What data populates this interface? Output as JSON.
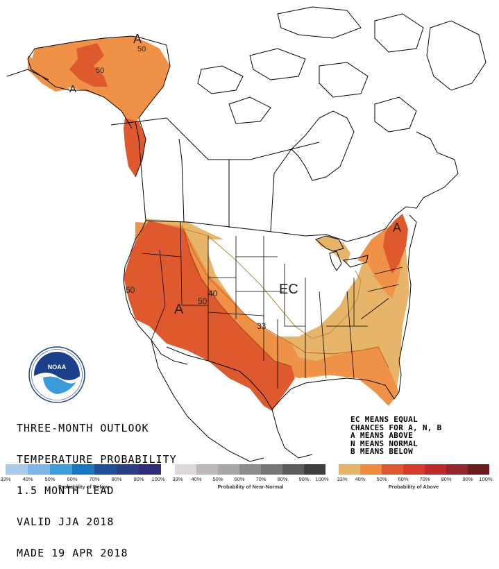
{
  "title_lines": [
    "THREE-MONTH OUTLOOK",
    "TEMPERATURE PROBABILITY",
    "1.5 MONTH LEAD",
    "VALID JJA 2018",
    "MADE 19 APR 2018"
  ],
  "legend_lines": [
    "EC MEANS EQUAL",
    "CHANCES FOR A, N, B",
    "A MEANS ABOVE",
    "N MEANS NORMAL",
    "B MEANS BELOW"
  ],
  "map_labels": {
    "ec": "EC",
    "above_west": "A",
    "above_alaska": "A",
    "above_alaska_south": "A",
    "above_northeast": "A",
    "c50_west": "50",
    "c50_interior": "50",
    "c40": "40",
    "c33": "33",
    "c50_alaska_1": "50",
    "c50_alaska_2": "50"
  },
  "colorbars": [
    {
      "title": "Probability of Below",
      "ticks": [
        "33%",
        "40%",
        "50%",
        "60%",
        "70%",
        "80%",
        "90%",
        "100%"
      ],
      "colors": [
        "#a8cbea",
        "#7ab6e6",
        "#3e9fdc",
        "#1577c0",
        "#1f4f96",
        "#2d3f86",
        "#2e2b78"
      ]
    },
    {
      "title": "Probability of Near-Normal",
      "ticks": [
        "33%",
        "40%",
        "50%",
        "60%",
        "70%",
        "80%",
        "90%",
        "100%"
      ],
      "colors": [
        "#dcd8d8",
        "#bfbaba",
        "#a9a6a6",
        "#8f8c8c",
        "#797777",
        "#5d5c5c",
        "#3e3e3e"
      ]
    },
    {
      "title": "Probability of Above",
      "ticks": [
        "33%",
        "40%",
        "50%",
        "60%",
        "70%",
        "80%",
        "90%",
        "100%"
      ],
      "colors": [
        "#e6b56a",
        "#f08a3d",
        "#de5a2e",
        "#d63a2a",
        "#bd2a2e",
        "#93262c",
        "#6e1b20"
      ]
    }
  ],
  "noaa_logo_text": "NATIONAL OCEANIC AND ATMOSPHERIC ADMINISTRATION · U.S. DEPARTMENT OF COMMERCE · NOAA"
}
